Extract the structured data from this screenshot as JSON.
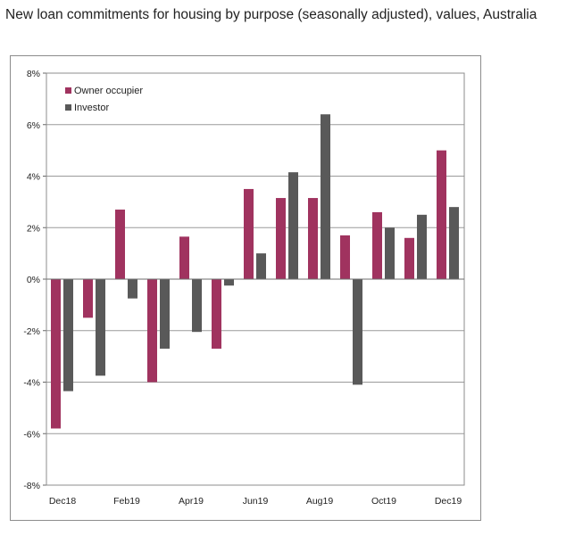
{
  "page": {
    "title": "New loan commitments for housing by purpose (seasonally adjusted), values, Australia"
  },
  "chart_data": {
    "type": "bar",
    "title": "",
    "xlabel": "",
    "ylabel": "",
    "categories": [
      "Dec18",
      "Jan19",
      "Feb19",
      "Mar19",
      "Apr19",
      "May19",
      "Jun19",
      "Jul19",
      "Aug19",
      "Sep19",
      "Oct19",
      "Nov19",
      "Dec19"
    ],
    "x_tick_labels": [
      "Dec18",
      "",
      "Feb19",
      "",
      "Apr19",
      "",
      "Jun19",
      "",
      "Aug19",
      "",
      "Oct19",
      "",
      "Dec19"
    ],
    "series": [
      {
        "name": "Owner occupier",
        "color": "#a0335f",
        "values": [
          -5.8,
          -1.5,
          2.7,
          -4.0,
          1.65,
          -2.7,
          3.5,
          3.15,
          3.15,
          1.7,
          2.6,
          1.6,
          5.0
        ]
      },
      {
        "name": "Investor",
        "color": "#595959",
        "values": [
          -4.35,
          -3.75,
          -0.75,
          -2.7,
          -2.05,
          -0.25,
          1.0,
          4.15,
          6.4,
          -4.1,
          2.0,
          2.5,
          2.8
        ]
      }
    ],
    "ylim": [
      -8,
      8
    ],
    "y_ticks": [
      8,
      6,
      4,
      2,
      0,
      -2,
      -4,
      -6,
      -8
    ],
    "y_tick_labels": [
      "8%",
      "6%",
      "4%",
      "2%",
      "0%",
      "-2%",
      "-4%",
      "-6%",
      "-8%"
    ],
    "grid": true,
    "legend_position": "top-left"
  }
}
